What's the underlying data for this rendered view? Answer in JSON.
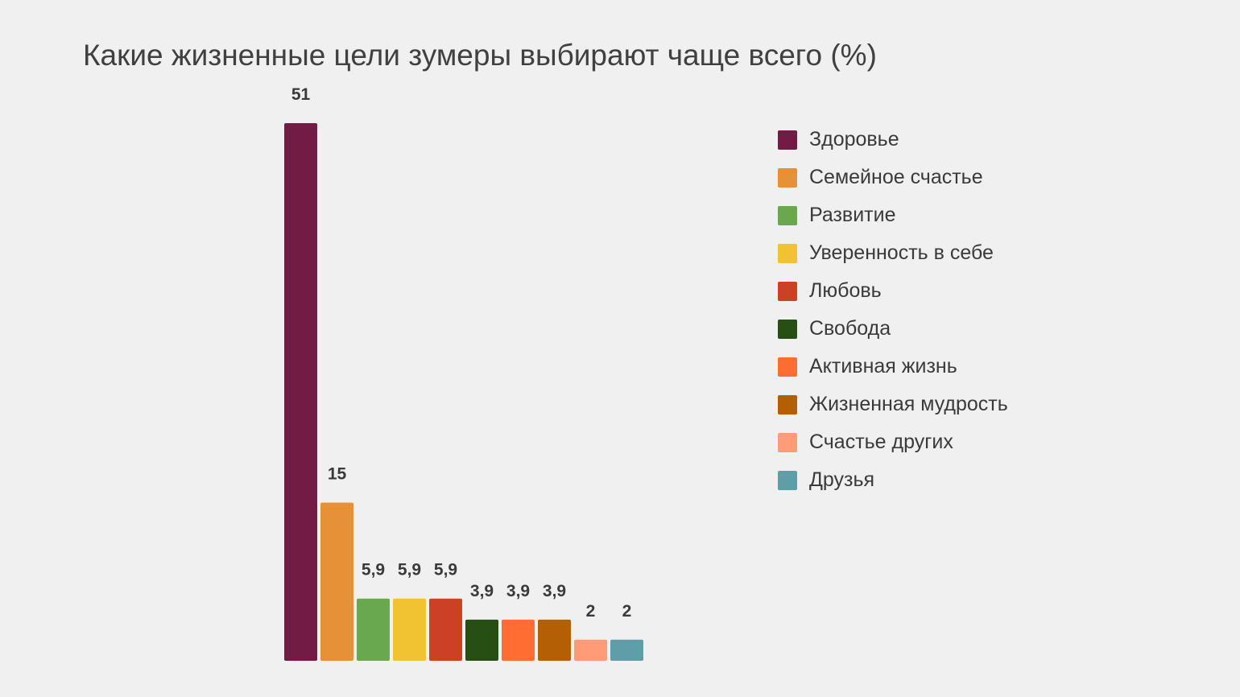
{
  "chart_data": {
    "type": "bar",
    "title": "Какие жизненные цели зумеры выбирают чаще всего (%)",
    "categories": [
      "Здоровье",
      "Семейное счастье",
      "Развитие",
      "Уверенность в себе",
      "Любовь",
      "Свобода",
      "Активная жизнь",
      "Жизненная мудрость",
      "Счастье других",
      "Друзья"
    ],
    "values": [
      51,
      15,
      5.9,
      5.9,
      5.9,
      3.9,
      3.9,
      3.9,
      2,
      2
    ],
    "value_labels": [
      "51",
      "15",
      "5,9",
      "5,9",
      "5,9",
      "3,9",
      "3,9",
      "3,9",
      "2",
      "2"
    ],
    "colors": [
      "#721b45",
      "#e69138",
      "#6aa84f",
      "#f1c232",
      "#cc4125",
      "#274e13",
      "#ff6d32",
      "#b45f06",
      "#ff9c77",
      "#5f9ea9"
    ],
    "xlabel": "",
    "ylabel": "",
    "ylim": [
      0,
      51
    ],
    "grid": false,
    "legend_position": "right",
    "data_labels": true
  }
}
